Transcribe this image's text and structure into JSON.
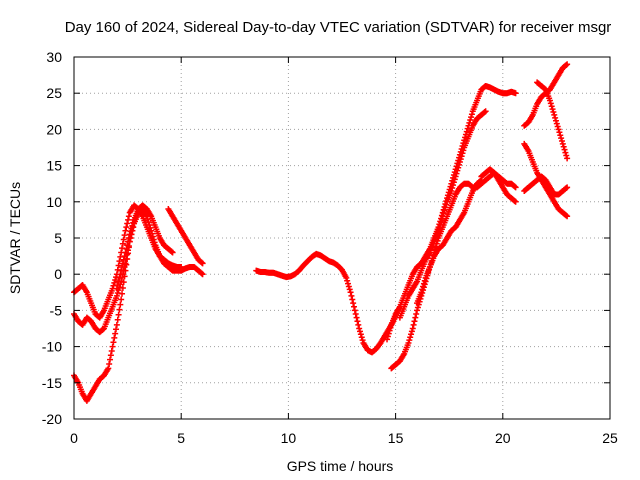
{
  "chart_data": {
    "type": "scatter",
    "title": "Day 160 of 2024, Sidereal Day-to-day VTEC variation (SDTVAR) for receiver msgr",
    "xlabel": "GPS time / hours",
    "ylabel": "SDTVAR / TECUs",
    "xlim": [
      0,
      25
    ],
    "ylim": [
      -20,
      30
    ],
    "xticks": [
      0,
      5,
      10,
      15,
      20,
      25
    ],
    "yticks": [
      -20,
      -15,
      -10,
      -5,
      0,
      5,
      10,
      15,
      20,
      25,
      30
    ],
    "xtick_labels": [
      "0",
      "5",
      "10",
      "15",
      "20",
      "25"
    ],
    "ytick_labels": [
      "-20",
      "-15",
      "-10",
      "-5",
      "0",
      "5",
      "10",
      "15",
      "20",
      "25",
      "30"
    ],
    "grid": true,
    "marker": "+",
    "color": "#ff0000",
    "series": [
      {
        "x": [
          0.0,
          0.2,
          0.4,
          0.6,
          0.8,
          1.0,
          1.2,
          1.4,
          1.6,
          1.8,
          2.0,
          2.2,
          2.4,
          2.6,
          2.8,
          3.0,
          3.2,
          3.4,
          3.6,
          3.8,
          4.0,
          4.2,
          4.4,
          4.6,
          4.8,
          5.0
        ],
        "y": [
          -2.5,
          -2.0,
          -1.5,
          -2.5,
          -4.0,
          -5.5,
          -6.0,
          -5.0,
          -3.5,
          -2.0,
          0.0,
          3.0,
          6.0,
          8.5,
          9.5,
          9.0,
          8.0,
          6.5,
          5.0,
          3.5,
          2.5,
          2.0,
          1.5,
          1.2,
          1.0,
          1.0
        ]
      },
      {
        "x": [
          0.0,
          0.2,
          0.4,
          0.6,
          0.8,
          1.0,
          1.2,
          1.4,
          1.6,
          1.8,
          2.0,
          2.2,
          2.4,
          2.6,
          2.8,
          3.0,
          3.2
        ],
        "y": [
          -5.5,
          -6.5,
          -7.0,
          -6.0,
          -6.5,
          -7.5,
          -8.0,
          -7.5,
          -6.0,
          -4.5,
          -3.0,
          -1.0,
          1.5,
          4.5,
          7.0,
          8.5,
          8.5
        ]
      },
      {
        "x": [
          0.0,
          0.2,
          0.4,
          0.6,
          0.8,
          1.0,
          1.2,
          1.4,
          1.6,
          1.8,
          2.0,
          2.2,
          2.4,
          2.6,
          2.8,
          3.0,
          3.2,
          3.4,
          3.6,
          3.8,
          4.0,
          4.2,
          4.4,
          4.6,
          4.8,
          5.0,
          5.2,
          5.4,
          5.6,
          5.8,
          6.0
        ],
        "y": [
          -14.0,
          -15.0,
          -16.5,
          -17.5,
          -16.5,
          -15.5,
          -14.5,
          -14.0,
          -13.0,
          -10.0,
          -7.0,
          -3.5,
          0.5,
          4.5,
          7.0,
          8.5,
          9.0,
          8.0,
          6.0,
          4.0,
          2.5,
          1.5,
          1.0,
          0.5,
          0.5,
          0.5,
          0.8,
          1.0,
          1.0,
          0.5,
          0.0
        ]
      },
      {
        "x": [
          2.0,
          2.2,
          2.4,
          2.6,
          2.8,
          3.0,
          3.2,
          3.4,
          3.6,
          3.8,
          4.0,
          4.2,
          4.4,
          4.6
        ],
        "y": [
          -2.0,
          0.5,
          3.0,
          5.5,
          7.5,
          9.0,
          9.5,
          9.0,
          8.0,
          6.5,
          5.0,
          4.0,
          3.5,
          3.0
        ]
      },
      {
        "x": [
          4.4,
          4.6,
          4.8,
          5.0,
          5.2,
          5.4,
          5.6,
          5.8,
          6.0
        ],
        "y": [
          9.0,
          8.0,
          7.0,
          6.0,
          5.0,
          4.0,
          3.0,
          2.0,
          1.5
        ]
      },
      {
        "x": [
          8.5,
          8.7,
          8.9,
          9.1,
          9.3,
          9.5,
          9.7,
          9.9,
          10.1,
          10.3,
          10.5,
          10.7,
          10.9,
          11.1,
          11.3,
          11.5,
          11.7,
          11.9,
          12.1,
          12.3,
          12.5,
          12.7,
          12.9,
          13.1,
          13.3,
          13.5,
          13.7,
          13.9,
          14.1,
          14.3,
          14.5,
          14.7,
          14.9,
          15.1
        ],
        "y": [
          0.5,
          0.3,
          0.3,
          0.2,
          0.2,
          0.0,
          -0.2,
          -0.4,
          -0.3,
          0.0,
          0.5,
          1.2,
          1.8,
          2.4,
          2.8,
          2.6,
          2.2,
          1.8,
          1.6,
          1.2,
          0.6,
          -0.5,
          -2.5,
          -5.0,
          -7.5,
          -9.5,
          -10.5,
          -10.8,
          -10.3,
          -9.5,
          -8.5,
          -7.5,
          -6.5,
          -5.0
        ]
      },
      {
        "x": [
          14.6,
          14.8,
          15.0,
          15.2,
          15.4,
          15.6,
          15.8,
          16.0,
          16.2,
          16.4,
          16.6,
          16.8,
          17.0,
          17.2,
          17.4,
          17.6,
          17.8,
          18.0,
          18.2,
          18.4,
          18.6,
          18.8,
          19.0,
          19.2,
          19.4,
          19.6,
          19.8,
          20.0,
          20.2,
          20.4,
          20.6
        ],
        "y": [
          -9.0,
          -7.0,
          -5.5,
          -4.5,
          -3.0,
          -1.5,
          0.0,
          1.0,
          1.5,
          2.5,
          3.5,
          5.0,
          6.5,
          8.5,
          10.5,
          12.5,
          14.5,
          16.5,
          18.5,
          20.5,
          22.5,
          24.0,
          25.5,
          26.0,
          25.8,
          25.5,
          25.2,
          25.0,
          25.0,
          25.2,
          25.0
        ]
      },
      {
        "x": [
          14.8,
          15.0,
          15.2,
          15.4,
          15.6,
          15.8,
          16.0,
          16.2,
          16.4,
          16.6,
          16.8,
          17.0,
          17.2,
          17.4,
          17.6,
          17.8,
          18.0,
          18.2,
          18.4,
          18.6,
          18.8,
          19.0,
          19.2,
          19.4,
          19.6,
          19.8,
          20.0,
          20.2,
          20.4,
          20.6
        ],
        "y": [
          -13.0,
          -12.5,
          -12.0,
          -11.0,
          -9.5,
          -7.5,
          -5.0,
          -3.0,
          -1.0,
          1.0,
          3.0,
          5.0,
          6.5,
          8.0,
          9.5,
          11.0,
          12.0,
          12.5,
          12.5,
          12.0,
          12.0,
          12.5,
          13.0,
          13.5,
          14.0,
          13.5,
          13.0,
          12.5,
          12.5,
          12.0
        ]
      },
      {
        "x": [
          15.2,
          15.4,
          15.6,
          15.8,
          16.0,
          16.2,
          16.4,
          16.6,
          16.8,
          17.0,
          17.2,
          17.4,
          17.6,
          17.8,
          18.0,
          18.2,
          18.4,
          18.6,
          18.8,
          19.0,
          19.2
        ],
        "y": [
          -6.0,
          -4.5,
          -3.0,
          -2.0,
          -1.0,
          0.5,
          2.0,
          3.0,
          4.5,
          6.0,
          8.0,
          10.0,
          11.5,
          13.5,
          15.5,
          17.5,
          19.0,
          20.5,
          21.5,
          22.0,
          22.5
        ]
      },
      {
        "x": [
          16.0,
          16.2,
          16.4,
          16.6,
          16.8,
          17.0,
          17.2,
          17.4,
          17.6,
          17.8,
          18.0,
          18.2,
          18.4,
          18.6,
          18.8,
          19.0
        ],
        "y": [
          -4.0,
          -2.5,
          -0.5,
          1.0,
          2.5,
          3.5,
          4.0,
          5.0,
          6.0,
          6.5,
          7.5,
          8.5,
          10.0,
          11.5,
          12.5,
          13.0
        ]
      },
      {
        "x": [
          19.0,
          19.2,
          19.4,
          19.6,
          19.8,
          20.0,
          20.2,
          20.4,
          20.6
        ],
        "y": [
          13.5,
          14.0,
          14.5,
          14.0,
          13.0,
          12.0,
          11.0,
          10.5,
          10.0
        ]
      },
      {
        "x": [
          21.0,
          21.2,
          21.4,
          21.6,
          21.8,
          22.0,
          22.2,
          22.4,
          22.6,
          22.8,
          23.0
        ],
        "y": [
          20.5,
          21.0,
          22.0,
          23.5,
          24.5,
          25.0,
          25.5,
          26.5,
          27.5,
          28.5,
          29.0
        ]
      },
      {
        "x": [
          21.6,
          21.8,
          22.0,
          22.2,
          22.4,
          22.6,
          22.8,
          23.0
        ],
        "y": [
          26.5,
          26.0,
          25.5,
          24.0,
          22.0,
          20.0,
          18.0,
          16.0
        ]
      },
      {
        "x": [
          21.0,
          21.2,
          21.4,
          21.6,
          21.8,
          22.0,
          22.2,
          22.4,
          22.6,
          22.8,
          23.0
        ],
        "y": [
          18.0,
          17.0,
          15.5,
          14.0,
          13.0,
          12.0,
          11.0,
          10.0,
          9.0,
          8.5,
          8.0
        ]
      },
      {
        "x": [
          21.0,
          21.2,
          21.4,
          21.6,
          21.8,
          22.0,
          22.2,
          22.4,
          22.6,
          22.8,
          23.0
        ],
        "y": [
          11.5,
          12.0,
          12.5,
          13.0,
          13.5,
          13.0,
          12.0,
          11.0,
          11.0,
          11.5,
          12.0
        ]
      }
    ]
  }
}
